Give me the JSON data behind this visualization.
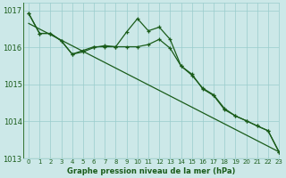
{
  "background_color": "#cce8e8",
  "plot_bg_color": "#cce8e8",
  "grid_color": "#99cccc",
  "line_color": "#1a5c1a",
  "xlabel": "Graphe pression niveau de la mer (hPa)",
  "xlim": [
    -0.5,
    23
  ],
  "ylim": [
    1013,
    1017.2
  ],
  "yticks": [
    1013,
    1014,
    1015,
    1016,
    1017
  ],
  "xticks": [
    0,
    1,
    2,
    3,
    4,
    5,
    6,
    7,
    8,
    9,
    10,
    11,
    12,
    13,
    14,
    15,
    16,
    17,
    18,
    19,
    20,
    21,
    22,
    23
  ],
  "line1_x": [
    0,
    1,
    2,
    3,
    4,
    5,
    6,
    7,
    8,
    9,
    10,
    11,
    12,
    13,
    14,
    15,
    16,
    17,
    18,
    19,
    20,
    21,
    22,
    23
  ],
  "line1_y": [
    1016.92,
    1016.38,
    1016.38,
    1016.18,
    1015.82,
    1015.92,
    1016.02,
    1016.02,
    1016.02,
    1016.42,
    1016.78,
    1016.45,
    1016.55,
    1016.22,
    1015.5,
    1015.28,
    1014.88,
    1014.7,
    1014.32,
    1014.15,
    1014.02,
    1013.88,
    1013.75,
    1013.18
  ],
  "line2_x": [
    0,
    1,
    2,
    3,
    4,
    5,
    6,
    7,
    8,
    9,
    10,
    11,
    12,
    13,
    14,
    15,
    16,
    17,
    18,
    19,
    20,
    21,
    22,
    23
  ],
  "line2_y": [
    1016.92,
    1016.38,
    1016.38,
    1016.18,
    1015.82,
    1015.88,
    1016.0,
    1016.05,
    1016.02,
    1016.02,
    1016.02,
    1016.08,
    1016.22,
    1015.98,
    1015.5,
    1015.25,
    1014.9,
    1014.72,
    1014.35,
    1014.15,
    1014.02,
    1013.88,
    1013.75,
    1013.18
  ],
  "line3_x": [
    0,
    23
  ],
  "line3_y": [
    1016.65,
    1013.18
  ]
}
